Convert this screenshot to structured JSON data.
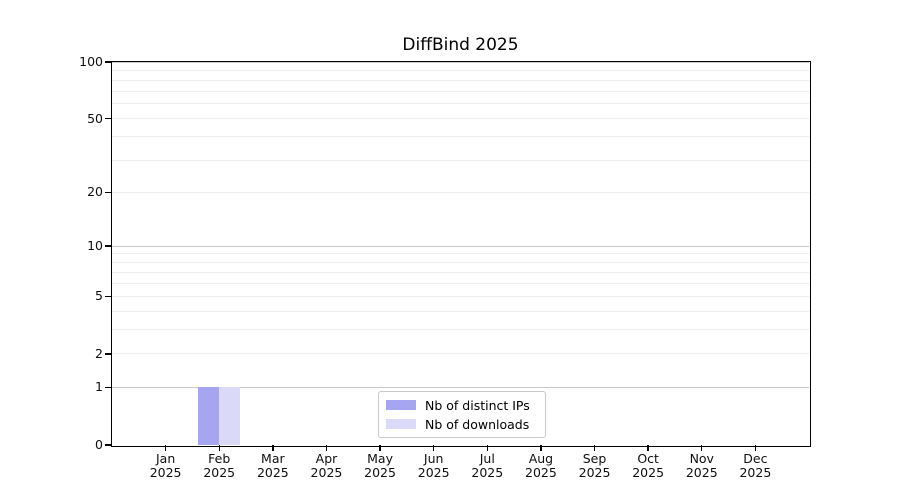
{
  "chart_data": {
    "type": "bar",
    "title": "DiffBind 2025",
    "categories": [
      "Jan 2025",
      "Feb 2025",
      "Mar 2025",
      "Apr 2025",
      "May 2025",
      "Jun 2025",
      "Jul 2025",
      "Aug 2025",
      "Sep 2025",
      "Oct 2025",
      "Nov 2025",
      "Dec 2025"
    ],
    "series": [
      {
        "name": "Nb of distinct IPs",
        "color": "#a5a5f1",
        "values": [
          0,
          1,
          0,
          0,
          0,
          0,
          0,
          0,
          0,
          0,
          0,
          0
        ]
      },
      {
        "name": "Nb of downloads",
        "color": "#dadaf8",
        "values": [
          0,
          1,
          0,
          0,
          0,
          0,
          0,
          0,
          0,
          0,
          0,
          0
        ]
      }
    ],
    "xlabel": "",
    "ylabel": "",
    "ylim": [
      0,
      100
    ],
    "yscale": "log10(value+1)",
    "yticks": [
      0,
      1,
      2,
      5,
      10,
      20,
      50,
      100
    ],
    "grid": true,
    "gridline_values_minor": [
      2,
      3,
      4,
      5,
      6,
      7,
      8,
      9,
      20,
      30,
      40,
      50,
      60,
      70,
      80,
      90
    ],
    "gridline_values_major": [
      1,
      10,
      100
    ],
    "legend_position": "lower center inside"
  },
  "colors": {
    "background": "#ffffff",
    "axis": "#000000",
    "text": "#0f0f0f",
    "grid_minor": "#ededed",
    "grid_major": "#c9c9c9",
    "legend_border": "#c9c9c9"
  }
}
